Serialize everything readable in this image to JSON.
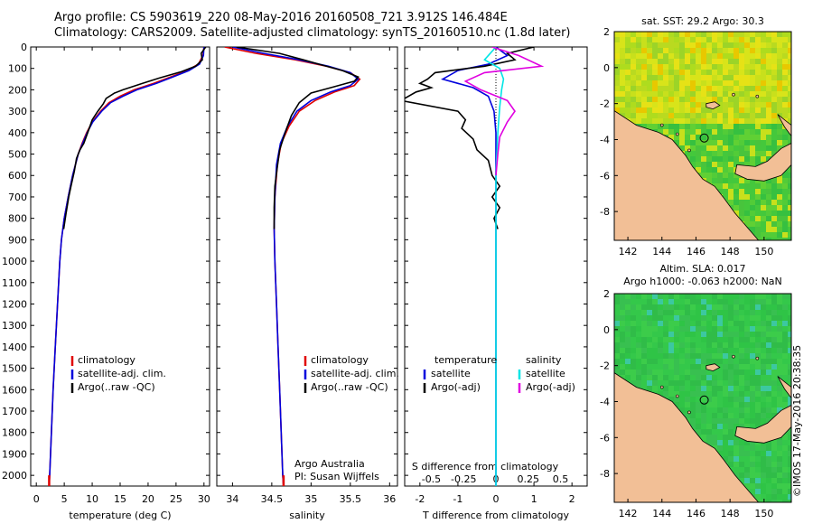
{
  "header": {
    "line1": "Argo profile: CS 5903619_220 08-May-2016 20160508_721 3.912S 146.484E",
    "line2": "Climatology: CARS2009. Satellite-adjusted climatology: synTS_20160510.nc (1.8d later)"
  },
  "credit": "©IMOS 17-May-2016 20:38:35",
  "colors": {
    "climatology": "#e00000",
    "satellite": "#0000dd",
    "argo": "#000000",
    "sat_salinity": "#00e5e5",
    "argo_salinity": "#e000e0",
    "land": "#f2bf96"
  },
  "y_ticks": [
    0,
    100,
    200,
    300,
    400,
    500,
    600,
    700,
    800,
    900,
    1000,
    1100,
    1200,
    1300,
    1400,
    1500,
    1600,
    1700,
    1800,
    1900,
    2000
  ],
  "chart_data": [
    {
      "type": "line",
      "id": "temperature",
      "xlabel": "temperature (deg C)",
      "ylabel": "",
      "xlim": [
        -1,
        31
      ],
      "ylim": [
        2050,
        0
      ],
      "x_ticks": [
        0,
        5,
        10,
        15,
        20,
        25,
        30
      ],
      "legend": [
        "climatology",
        "satellite-adj. clim.",
        "Argo(..raw -QC)"
      ],
      "series": [
        {
          "name": "climatology",
          "color": "#e00000",
          "points": [
            [
              30,
              0
            ],
            [
              29.8,
              40
            ],
            [
              29,
              80
            ],
            [
              27,
              110
            ],
            [
              24,
              140
            ],
            [
              21,
              170
            ],
            [
              17.5,
              200
            ],
            [
              15,
              230
            ],
            [
              13,
              260
            ],
            [
              11.5,
              300
            ],
            [
              10,
              350
            ],
            [
              9,
              400
            ],
            [
              8.2,
              450
            ],
            [
              7.5,
              500
            ],
            [
              6.5,
              600
            ],
            [
              5.7,
              700
            ],
            [
              5,
              800
            ],
            [
              4.5,
              900
            ],
            [
              4.2,
              1000
            ],
            [
              3.8,
              1200
            ],
            [
              3.4,
              1400
            ],
            [
              3,
              1600
            ],
            [
              2.7,
              1800
            ],
            [
              2.4,
              2000
            ],
            [
              2.3,
              2050
            ]
          ]
        },
        {
          "name": "satellite-adj. clim.",
          "color": "#0000dd",
          "points": [
            [
              30,
              0
            ],
            [
              29.9,
              40
            ],
            [
              29.2,
              80
            ],
            [
              27.3,
              110
            ],
            [
              24.4,
              140
            ],
            [
              21.5,
              170
            ],
            [
              18,
              200
            ],
            [
              15.5,
              230
            ],
            [
              13.3,
              260
            ],
            [
              11.7,
              300
            ],
            [
              10.1,
              350
            ],
            [
              9.1,
              400
            ],
            [
              8.3,
              450
            ],
            [
              7.5,
              500
            ],
            [
              6.5,
              600
            ],
            [
              5.7,
              700
            ],
            [
              5,
              800
            ],
            [
              4.5,
              900
            ],
            [
              4.2,
              1000
            ],
            [
              3.8,
              1200
            ],
            [
              3.4,
              1400
            ],
            [
              3,
              1600
            ],
            [
              2.7,
              1800
            ],
            [
              2.4,
              2000
            ],
            [
              2.3,
              2050
            ]
          ]
        },
        {
          "name": "Argo(..raw -QC)",
          "color": "#000000",
          "points": [
            [
              30.3,
              0
            ],
            [
              29.5,
              30
            ],
            [
              29.7,
              60
            ],
            [
              28.5,
              90
            ],
            [
              26,
              115
            ],
            [
              22,
              145
            ],
            [
              19,
              170
            ],
            [
              15.5,
              200
            ],
            [
              14,
              215
            ],
            [
              12.5,
              240
            ],
            [
              12,
              265
            ],
            [
              11,
              300
            ],
            [
              10,
              340
            ],
            [
              9.2,
              400
            ],
            [
              8.5,
              450
            ],
            [
              7.8,
              480
            ],
            [
              7.2,
              520
            ],
            [
              6.8,
              580
            ],
            [
              6.2,
              650
            ],
            [
              5.8,
              700
            ],
            [
              5.3,
              780
            ],
            [
              4.9,
              850
            ]
          ]
        }
      ]
    },
    {
      "type": "line",
      "id": "salinity",
      "xlabel": "salinity",
      "ylabel": "",
      "xlim": [
        33.8,
        36.1
      ],
      "ylim": [
        2050,
        0
      ],
      "x_ticks": [
        34,
        34.5,
        35,
        35.5,
        36
      ],
      "legend": [
        "climatology",
        "satellite-adj. clim.",
        "Argo(..raw -QC)"
      ],
      "annotations": [
        "Argo Australia",
        "PI: Susan Wijffels"
      ],
      "series": [
        {
          "name": "climatology",
          "color": "#e00000",
          "points": [
            [
              33.9,
              0
            ],
            [
              34.3,
              30
            ],
            [
              34.8,
              60
            ],
            [
              35.2,
              90
            ],
            [
              35.5,
              120
            ],
            [
              35.62,
              150
            ],
            [
              35.55,
              180
            ],
            [
              35.3,
              210
            ],
            [
              35.05,
              250
            ],
            [
              34.85,
              300
            ],
            [
              34.72,
              370
            ],
            [
              34.62,
              450
            ],
            [
              34.57,
              550
            ],
            [
              34.54,
              700
            ],
            [
              34.53,
              850
            ],
            [
              34.54,
              1000
            ],
            [
              34.56,
              1200
            ],
            [
              34.58,
              1400
            ],
            [
              34.6,
              1600
            ],
            [
              34.62,
              1800
            ],
            [
              34.64,
              2000
            ],
            [
              34.65,
              2050
            ]
          ]
        },
        {
          "name": "satellite-adj. clim.",
          "color": "#0000dd",
          "points": [
            [
              34.0,
              0
            ],
            [
              34.4,
              30
            ],
            [
              34.85,
              60
            ],
            [
              35.22,
              90
            ],
            [
              35.5,
              120
            ],
            [
              35.6,
              150
            ],
            [
              35.5,
              180
            ],
            [
              35.25,
              210
            ],
            [
              35.0,
              250
            ],
            [
              34.82,
              300
            ],
            [
              34.7,
              370
            ],
            [
              34.61,
              450
            ],
            [
              34.56,
              550
            ],
            [
              34.54,
              700
            ],
            [
              34.53,
              850
            ],
            [
              34.54,
              1000
            ],
            [
              34.56,
              1200
            ],
            [
              34.58,
              1400
            ],
            [
              34.6,
              1600
            ],
            [
              34.62,
              1800
            ],
            [
              34.64,
              2000
            ],
            [
              34.65,
              2050
            ]
          ]
        },
        {
          "name": "Argo(..raw -QC)",
          "color": "#000000",
          "points": [
            [
              34.05,
              0
            ],
            [
              34.6,
              30
            ],
            [
              34.9,
              60
            ],
            [
              35.1,
              80
            ],
            [
              35.4,
              110
            ],
            [
              35.6,
              140
            ],
            [
              35.55,
              160
            ],
            [
              35.3,
              185
            ],
            [
              35.0,
              215
            ],
            [
              34.85,
              260
            ],
            [
              34.75,
              320
            ],
            [
              34.67,
              400
            ],
            [
              34.6,
              480
            ],
            [
              34.57,
              560
            ],
            [
              34.54,
              650
            ],
            [
              34.53,
              750
            ],
            [
              34.53,
              850
            ]
          ]
        }
      ]
    },
    {
      "type": "line",
      "id": "difference",
      "xlabel": "T difference from climatology",
      "xlabel_top": "S difference from climatology",
      "ylabel": "",
      "xlim": [
        -2.4,
        2.4
      ],
      "ylim": [
        2050,
        0
      ],
      "x_ticks": [
        -2,
        -1,
        0,
        1,
        2
      ],
      "x_ticks_s": [
        -0.5,
        -0.25,
        0,
        0.25,
        0.5
      ],
      "legend_headers": [
        "temperature",
        "salinity"
      ],
      "legend": [
        "satellite",
        "Argo(-adj)",
        "satellite",
        "Argo(-adj)"
      ],
      "series": [
        {
          "name": "satellite",
          "color": "#0000dd",
          "points": [
            [
              0,
              0
            ],
            [
              0.3,
              40
            ],
            [
              -0.2,
              80
            ],
            [
              -1.0,
              110
            ],
            [
              -1.4,
              150
            ],
            [
              -0.6,
              190
            ],
            [
              -0.2,
              230
            ],
            [
              -0.05,
              300
            ],
            [
              0,
              400
            ],
            [
              0,
              2050
            ]
          ]
        },
        {
          "name": "Argo(-adj)",
          "color": "#000000",
          "points": [
            [
              1.0,
              0
            ],
            [
              0.3,
              30
            ],
            [
              0.5,
              60
            ],
            [
              -0.3,
              90
            ],
            [
              -1.6,
              120
            ],
            [
              -1.8,
              150
            ],
            [
              -2.0,
              170
            ],
            [
              -1.7,
              190
            ],
            [
              -2.1,
              210
            ],
            [
              -2.5,
              250
            ],
            [
              -1.0,
              300
            ],
            [
              -0.8,
              340
            ],
            [
              -0.9,
              380
            ],
            [
              -0.6,
              430
            ],
            [
              -0.5,
              480
            ],
            [
              -0.2,
              530
            ],
            [
              -0.1,
              600
            ],
            [
              0.1,
              650
            ],
            [
              -0.1,
              700
            ],
            [
              0.1,
              750
            ],
            [
              -0.05,
              800
            ],
            [
              0.05,
              850
            ]
          ]
        },
        {
          "name": "satellite",
          "color": "#00e5e5",
          "points": [
            [
              0,
              0
            ],
            [
              -0.3,
              60
            ],
            [
              0.1,
              100
            ],
            [
              0.2,
              150
            ],
            [
              0.15,
              200
            ],
            [
              0.1,
              280
            ],
            [
              0.05,
              400
            ],
            [
              0,
              600
            ],
            [
              0,
              2050
            ]
          ]
        },
        {
          "name": "Argo(-adj)",
          "color": "#e000e0",
          "points": [
            [
              -0.1,
              0
            ],
            [
              0.6,
              40
            ],
            [
              1.2,
              90
            ],
            [
              -0.3,
              120
            ],
            [
              -0.8,
              160
            ],
            [
              -0.4,
              200
            ],
            [
              0.3,
              250
            ],
            [
              0.5,
              300
            ],
            [
              0.3,
              350
            ],
            [
              0.1,
              420
            ],
            [
              0.05,
              500
            ],
            [
              0,
              600
            ]
          ]
        }
      ]
    },
    {
      "type": "heatmap",
      "id": "sst-map",
      "title": "sat. SST: 29.2  Argo: 30.3",
      "xlim": [
        141.2,
        151.6
      ],
      "ylim": [
        -9.6,
        2
      ],
      "x_ticks": [
        142,
        144,
        146,
        148,
        150
      ],
      "y_ticks": [
        2,
        0,
        -2,
        -4,
        -6,
        -8
      ],
      "marker": {
        "lon": 146.484,
        "lat": -3.912
      }
    },
    {
      "type": "heatmap",
      "id": "sla-map",
      "title_line1": "Altim. SLA: 0.017",
      "title_line2": "Argo h1000: -0.063 h2000: NaN",
      "xlim": [
        141.2,
        151.6
      ],
      "ylim": [
        -9.6,
        2
      ],
      "x_ticks": [
        142,
        144,
        146,
        148,
        150
      ],
      "y_ticks": [
        2,
        0,
        -2,
        -4,
        -6,
        -8
      ],
      "marker": {
        "lon": 146.484,
        "lat": -3.912
      }
    }
  ]
}
